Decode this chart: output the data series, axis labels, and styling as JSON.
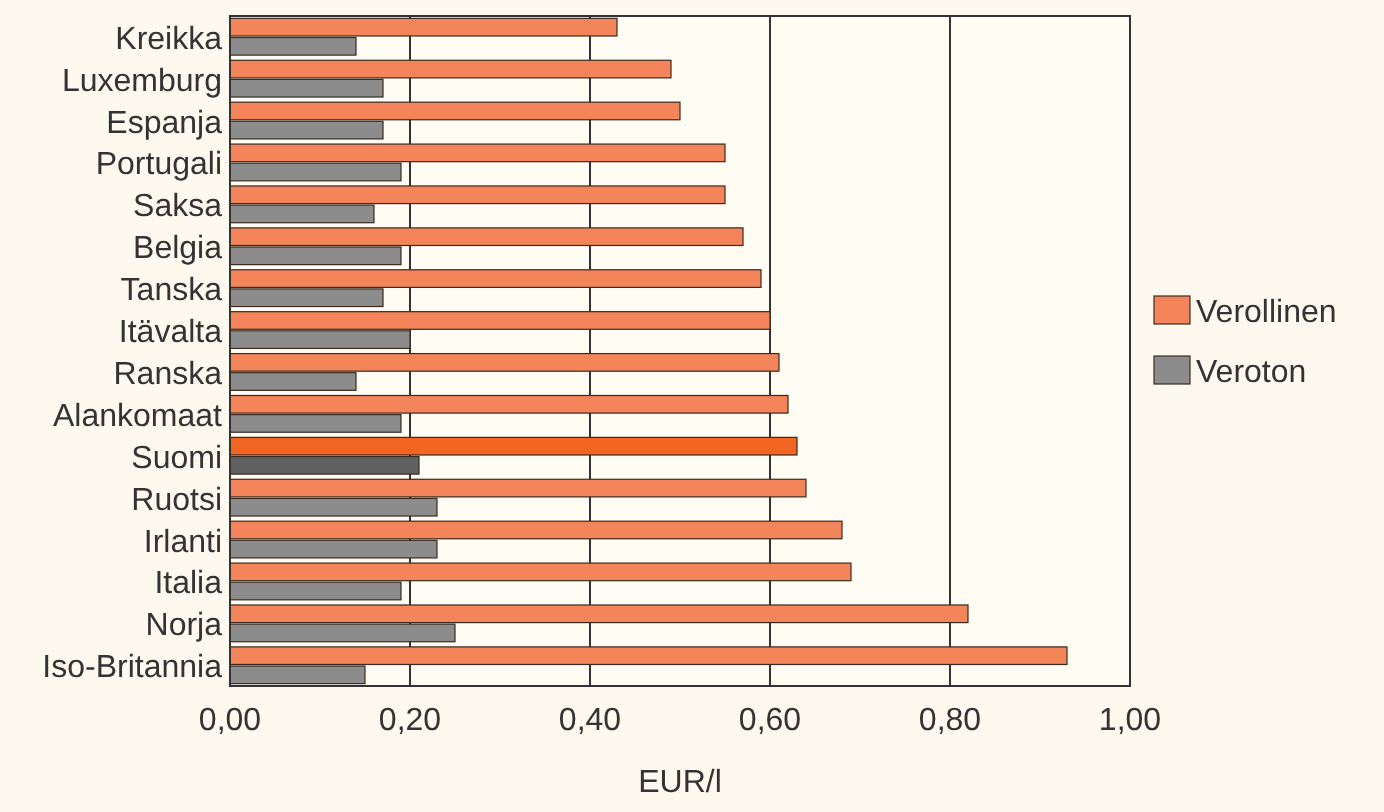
{
  "chart_data": {
    "type": "bar",
    "orientation": "horizontal",
    "xlabel": "EUR/l",
    "categories": [
      "Kreikka",
      "Luxemburg",
      "Espanja",
      "Portugali",
      "Saksa",
      "Belgia",
      "Tanska",
      "Itävalta",
      "Ranska",
      "Alankomaat",
      "Suomi",
      "Ruotsi",
      "Irlanti",
      "Italia",
      "Norja",
      "Iso-Britannia"
    ],
    "series": [
      {
        "name": "Verollinen",
        "color": "#f4845a",
        "colors": [
          "#f4845a",
          "#f4845a",
          "#f4845a",
          "#f4845a",
          "#f4845a",
          "#f4845a",
          "#f4845a",
          "#f4845a",
          "#f4845a",
          "#f4845a",
          "#f26522",
          "#f4845a",
          "#f4845a",
          "#f4845a",
          "#f4845a",
          "#f4845a"
        ],
        "values": [
          0.43,
          0.49,
          0.5,
          0.55,
          0.55,
          0.57,
          0.59,
          0.6,
          0.61,
          0.62,
          0.63,
          0.64,
          0.68,
          0.69,
          0.82,
          0.93
        ]
      },
      {
        "name": "Veroton",
        "color": "#8c8c8c",
        "colors": [
          "#8c8c8c",
          "#8c8c8c",
          "#8c8c8c",
          "#8c8c8c",
          "#8c8c8c",
          "#8c8c8c",
          "#8c8c8c",
          "#8c8c8c",
          "#8c8c8c",
          "#8c8c8c",
          "#606060",
          "#8c8c8c",
          "#8c8c8c",
          "#8c8c8c",
          "#8c8c8c",
          "#8c8c8c"
        ],
        "values": [
          0.14,
          0.17,
          0.17,
          0.19,
          0.16,
          0.19,
          0.17,
          0.2,
          0.14,
          0.19,
          0.21,
          0.23,
          0.23,
          0.19,
          0.25,
          0.15
        ]
      }
    ],
    "xlim": [
      0,
      1
    ],
    "xticks": [
      {
        "value": 0,
        "label": "0,00"
      },
      {
        "value": 0.2,
        "label": "0,20"
      },
      {
        "value": 0.4,
        "label": "0,40"
      },
      {
        "value": 0.6,
        "label": "0,60"
      },
      {
        "value": 0.8,
        "label": "0,80"
      },
      {
        "value": 1,
        "label": "1,00"
      }
    ],
    "grid": "x",
    "legend": "right"
  }
}
